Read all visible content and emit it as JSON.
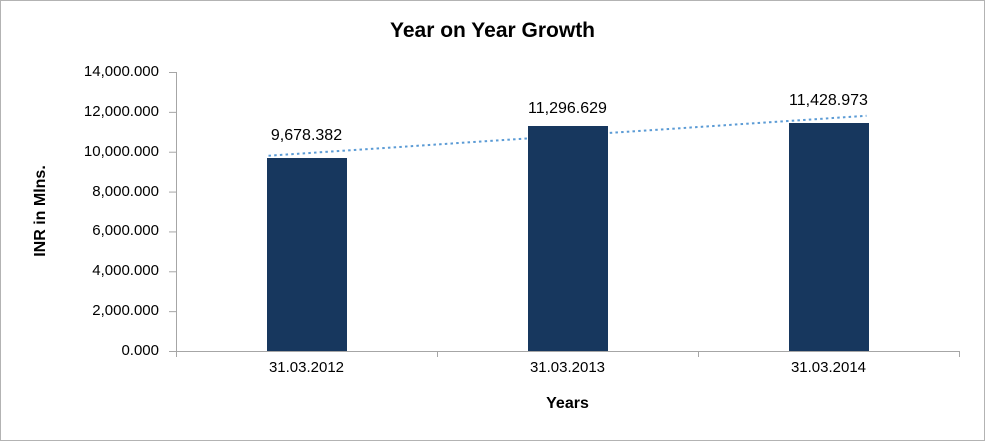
{
  "chart_data": {
    "type": "bar",
    "title": "Year on Year Growth",
    "xlabel": "Years",
    "ylabel": "INR in Mlns.",
    "categories": [
      "31.03.2012",
      "31.03.2013",
      "31.03.2014"
    ],
    "values": [
      9678.382,
      11296.629,
      11428.973
    ],
    "data_labels": [
      "9,678.382",
      "11,296.629",
      "11,428.973"
    ],
    "ylim": [
      0,
      14000
    ],
    "ytick_step": 2000,
    "ytick_labels": [
      "0.000",
      "2,000.000",
      "4,000.000",
      "6,000.000",
      "8,000.000",
      "10,000.000",
      "12,000.000",
      "14,000.000"
    ],
    "grid": false,
    "legend": "none",
    "bar_color": "#17375E",
    "trend_color": "#5B9BD5",
    "axis_color": "#A6A6A6",
    "trendline_style": "dotted"
  }
}
